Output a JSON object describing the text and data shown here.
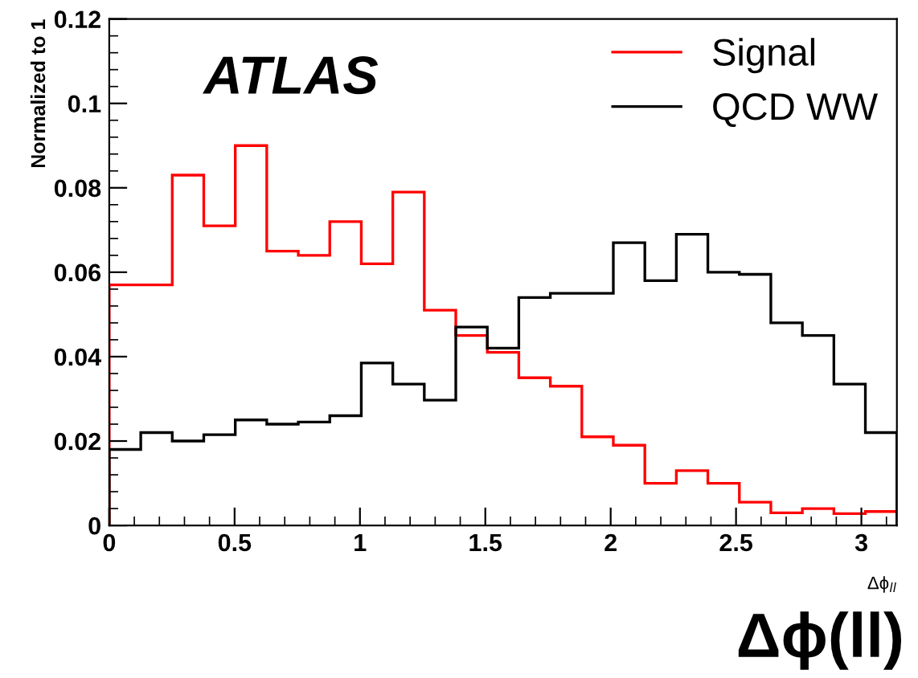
{
  "chart_data": {
    "type": "histogram",
    "bins": [
      0,
      0.1257,
      0.2513,
      0.377,
      0.5027,
      0.6283,
      0.754,
      0.8796,
      1.0053,
      1.131,
      1.2566,
      1.3823,
      1.508,
      1.6336,
      1.7593,
      1.885,
      2.0106,
      2.1363,
      2.2619,
      2.3876,
      2.5133,
      2.6389,
      2.7646,
      2.8903,
      3.0159,
      3.1416
    ],
    "series": [
      {
        "name": "Signal",
        "color": "#ff0000",
        "values": [
          0.057,
          0.057,
          0.083,
          0.071,
          0.09,
          0.065,
          0.064,
          0.072,
          0.062,
          0.079,
          0.051,
          0.045,
          0.041,
          0.035,
          0.033,
          0.021,
          0.019,
          0.01,
          0.013,
          0.01,
          0.0055,
          0.003,
          0.004,
          0.0028,
          0.0033
        ]
      },
      {
        "name": "QCD WW",
        "color": "#000000",
        "values": [
          0.018,
          0.022,
          0.02,
          0.0215,
          0.025,
          0.024,
          0.0245,
          0.026,
          0.0385,
          0.0335,
          0.0297,
          0.047,
          0.042,
          0.054,
          0.055,
          0.055,
          0.067,
          0.058,
          0.069,
          0.06,
          0.0595,
          0.048,
          0.045,
          0.0335,
          0.022
        ]
      }
    ],
    "xlim": [
      0,
      3.1416
    ],
    "xticks": [
      0,
      0.5,
      1,
      1.5,
      2,
      2.5,
      3
    ],
    "ylim": [
      0,
      0.12
    ],
    "yticks": [
      0,
      0.02,
      0.04,
      0.06,
      0.08,
      0.1,
      0.12
    ],
    "xlabel": "Δϕ$_{ll}$",
    "ylabel": "Normalized to 1",
    "annotations": [
      "ATLAS",
      "Δϕ(ll)"
    ],
    "legend": "top right",
    "grid": false
  }
}
